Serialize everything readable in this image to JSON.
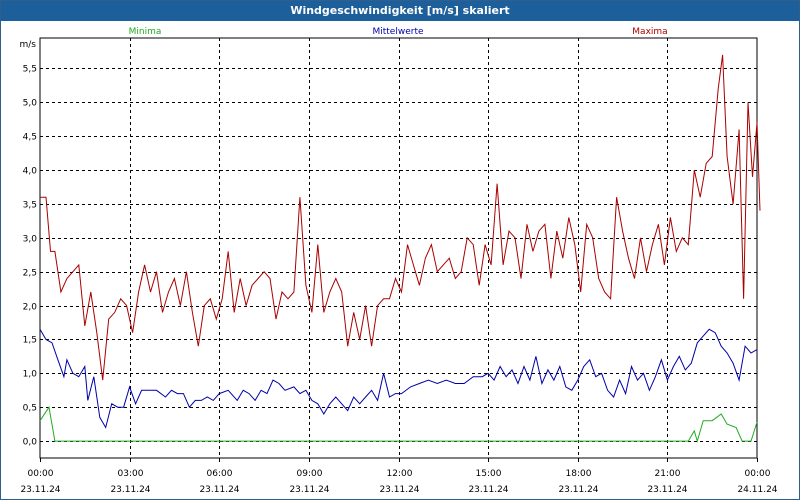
{
  "chart_data": {
    "type": "line",
    "title": "Windgeschwindigkeit [m/s] skaliert",
    "ylabel": "m/s",
    "ylim": [
      -0.25,
      5.95
    ],
    "yticks": [
      "0,0",
      "0,5",
      "1,0",
      "1,5",
      "2,0",
      "2,5",
      "3,0",
      "3,5",
      "4,0",
      "4,5",
      "5,0",
      "5,5"
    ],
    "ytick_values": [
      0,
      0.5,
      1,
      1.5,
      2,
      2.5,
      3,
      3.5,
      4,
      4.5,
      5,
      5.5
    ],
    "xlim": [
      0,
      24
    ],
    "xticks": [
      {
        "time": "00:00",
        "date": "23.11.24"
      },
      {
        "time": "03:00",
        "date": "23.11.24"
      },
      {
        "time": "06:00",
        "date": "23.11.24"
      },
      {
        "time": "09:00",
        "date": "23.11.24"
      },
      {
        "time": "12:00",
        "date": "23.11.24"
      },
      {
        "time": "15:00",
        "date": "23.11.24"
      },
      {
        "time": "18:00",
        "date": "23.11.24"
      },
      {
        "time": "21:00",
        "date": "23.11.24"
      },
      {
        "time": "00:00",
        "date": "24.11.24"
      }
    ],
    "xtick_values": [
      0,
      3,
      6,
      9,
      12,
      15,
      18,
      21,
      24
    ],
    "grid": true,
    "legend_position": "top",
    "series": [
      {
        "name": "Minima",
        "color": "#22aa22",
        "points": [
          [
            0,
            0.3
          ],
          [
            0.3,
            0.5
          ],
          [
            0.5,
            0.0
          ],
          [
            1,
            0
          ],
          [
            3,
            0
          ],
          [
            6,
            0
          ],
          [
            9,
            0
          ],
          [
            12,
            0
          ],
          [
            15,
            0
          ],
          [
            18,
            0
          ],
          [
            21,
            0
          ],
          [
            21.7,
            0
          ],
          [
            21.9,
            0.15
          ],
          [
            22,
            0.0
          ],
          [
            22.2,
            0.3
          ],
          [
            22.5,
            0.3
          ],
          [
            22.8,
            0.4
          ],
          [
            23,
            0.25
          ],
          [
            23.3,
            0.2
          ],
          [
            23.5,
            0.0
          ],
          [
            23.8,
            0.0
          ],
          [
            24,
            0.28
          ]
        ]
      },
      {
        "name": "Mittelwerte",
        "color": "#0000aa",
        "points": [
          [
            0,
            1.65
          ],
          [
            0.2,
            1.5
          ],
          [
            0.4,
            1.45
          ],
          [
            0.6,
            1.2
          ],
          [
            0.8,
            0.95
          ],
          [
            0.9,
            1.2
          ],
          [
            1.1,
            1.0
          ],
          [
            1.3,
            0.95
          ],
          [
            1.5,
            1.1
          ],
          [
            1.6,
            0.6
          ],
          [
            1.8,
            0.95
          ],
          [
            2,
            0.35
          ],
          [
            2.2,
            0.2
          ],
          [
            2.4,
            0.55
          ],
          [
            2.6,
            0.5
          ],
          [
            2.8,
            0.5
          ],
          [
            3,
            0.8
          ],
          [
            3.2,
            0.55
          ],
          [
            3.4,
            0.75
          ],
          [
            3.6,
            0.75
          ],
          [
            3.9,
            0.75
          ],
          [
            4.2,
            0.65
          ],
          [
            4.4,
            0.75
          ],
          [
            4.6,
            0.7
          ],
          [
            4.8,
            0.7
          ],
          [
            5,
            0.5
          ],
          [
            5.2,
            0.6
          ],
          [
            5.4,
            0.6
          ],
          [
            5.6,
            0.65
          ],
          [
            5.8,
            0.6
          ],
          [
            6,
            0.7
          ],
          [
            6.3,
            0.75
          ],
          [
            6.6,
            0.6
          ],
          [
            6.8,
            0.75
          ],
          [
            7,
            0.7
          ],
          [
            7.2,
            0.6
          ],
          [
            7.4,
            0.75
          ],
          [
            7.6,
            0.7
          ],
          [
            7.8,
            0.9
          ],
          [
            8,
            0.85
          ],
          [
            8.2,
            0.75
          ],
          [
            8.5,
            0.8
          ],
          [
            8.7,
            0.7
          ],
          [
            8.9,
            0.75
          ],
          [
            9.1,
            0.6
          ],
          [
            9.3,
            0.55
          ],
          [
            9.5,
            0.4
          ],
          [
            9.7,
            0.55
          ],
          [
            9.9,
            0.65
          ],
          [
            10.1,
            0.55
          ],
          [
            10.3,
            0.45
          ],
          [
            10.5,
            0.65
          ],
          [
            10.7,
            0.55
          ],
          [
            10.9,
            0.65
          ],
          [
            11.1,
            0.75
          ],
          [
            11.3,
            0.6
          ],
          [
            11.5,
            1.0
          ],
          [
            11.7,
            0.65
          ],
          [
            11.9,
            0.7
          ],
          [
            12.1,
            0.7
          ],
          [
            12.4,
            0.8
          ],
          [
            12.7,
            0.85
          ],
          [
            13,
            0.9
          ],
          [
            13.3,
            0.85
          ],
          [
            13.6,
            0.9
          ],
          [
            13.9,
            0.85
          ],
          [
            14.2,
            0.85
          ],
          [
            14.5,
            0.95
          ],
          [
            14.8,
            0.95
          ],
          [
            15,
            1.0
          ],
          [
            15.2,
            0.9
          ],
          [
            15.4,
            1.1
          ],
          [
            15.6,
            0.95
          ],
          [
            15.8,
            1.05
          ],
          [
            16,
            0.85
          ],
          [
            16.2,
            1.1
          ],
          [
            16.4,
            0.9
          ],
          [
            16.6,
            1.25
          ],
          [
            16.8,
            0.85
          ],
          [
            17,
            1.05
          ],
          [
            17.2,
            0.9
          ],
          [
            17.4,
            1.1
          ],
          [
            17.6,
            0.8
          ],
          [
            17.8,
            0.75
          ],
          [
            18,
            0.9
          ],
          [
            18.2,
            1.1
          ],
          [
            18.4,
            1.2
          ],
          [
            18.6,
            0.95
          ],
          [
            18.8,
            1.0
          ],
          [
            19,
            0.75
          ],
          [
            19.2,
            0.65
          ],
          [
            19.4,
            0.9
          ],
          [
            19.6,
            0.7
          ],
          [
            19.8,
            1.1
          ],
          [
            20,
            0.9
          ],
          [
            20.2,
            1.0
          ],
          [
            20.4,
            0.75
          ],
          [
            20.6,
            0.95
          ],
          [
            20.8,
            1.2
          ],
          [
            21,
            0.9
          ],
          [
            21.2,
            1.1
          ],
          [
            21.4,
            1.25
          ],
          [
            21.6,
            1.05
          ],
          [
            21.8,
            1.15
          ],
          [
            22,
            1.45
          ],
          [
            22.2,
            1.55
          ],
          [
            22.4,
            1.65
          ],
          [
            22.6,
            1.6
          ],
          [
            22.8,
            1.4
          ],
          [
            23,
            1.3
          ],
          [
            23.2,
            1.15
          ],
          [
            23.4,
            0.9
          ],
          [
            23.6,
            1.4
          ],
          [
            23.8,
            1.3
          ],
          [
            24,
            1.35
          ]
        ]
      },
      {
        "name": "Maxima",
        "color": "#aa0000",
        "points": [
          [
            0,
            3.6
          ],
          [
            0.2,
            3.6
          ],
          [
            0.35,
            2.8
          ],
          [
            0.5,
            2.8
          ],
          [
            0.7,
            2.2
          ],
          [
            0.9,
            2.4
          ],
          [
            1.1,
            2.5
          ],
          [
            1.3,
            2.6
          ],
          [
            1.5,
            1.7
          ],
          [
            1.7,
            2.2
          ],
          [
            1.9,
            1.6
          ],
          [
            2.1,
            0.9
          ],
          [
            2.3,
            1.8
          ],
          [
            2.5,
            1.9
          ],
          [
            2.7,
            2.1
          ],
          [
            2.9,
            2.0
          ],
          [
            3.1,
            1.6
          ],
          [
            3.3,
            2.2
          ],
          [
            3.5,
            2.6
          ],
          [
            3.7,
            2.2
          ],
          [
            3.9,
            2.5
          ],
          [
            4.1,
            1.9
          ],
          [
            4.3,
            2.2
          ],
          [
            4.5,
            2.4
          ],
          [
            4.7,
            2.0
          ],
          [
            4.9,
            2.5
          ],
          [
            5.1,
            1.9
          ],
          [
            5.3,
            1.4
          ],
          [
            5.5,
            2.0
          ],
          [
            5.7,
            2.1
          ],
          [
            5.9,
            1.8
          ],
          [
            6.1,
            2.1
          ],
          [
            6.3,
            2.8
          ],
          [
            6.5,
            1.9
          ],
          [
            6.7,
            2.4
          ],
          [
            6.9,
            2.0
          ],
          [
            7.1,
            2.3
          ],
          [
            7.3,
            2.4
          ],
          [
            7.5,
            2.5
          ],
          [
            7.7,
            2.4
          ],
          [
            7.9,
            1.8
          ],
          [
            8.1,
            2.2
          ],
          [
            8.3,
            2.1
          ],
          [
            8.5,
            2.2
          ],
          [
            8.7,
            3.6
          ],
          [
            8.9,
            2.3
          ],
          [
            9.1,
            1.9
          ],
          [
            9.3,
            2.9
          ],
          [
            9.5,
            1.9
          ],
          [
            9.7,
            2.2
          ],
          [
            9.9,
            2.4
          ],
          [
            10.1,
            2.2
          ],
          [
            10.3,
            1.4
          ],
          [
            10.5,
            1.9
          ],
          [
            10.7,
            1.5
          ],
          [
            10.9,
            2.0
          ],
          [
            11.1,
            1.4
          ],
          [
            11.3,
            2.0
          ],
          [
            11.5,
            2.1
          ],
          [
            11.7,
            2.1
          ],
          [
            11.9,
            2.4
          ],
          [
            12.1,
            2.2
          ],
          [
            12.3,
            2.9
          ],
          [
            12.5,
            2.6
          ],
          [
            12.7,
            2.3
          ],
          [
            12.9,
            2.7
          ],
          [
            13.1,
            2.9
          ],
          [
            13.3,
            2.5
          ],
          [
            13.5,
            2.6
          ],
          [
            13.7,
            2.7
          ],
          [
            13.9,
            2.4
          ],
          [
            14.1,
            2.5
          ],
          [
            14.3,
            3.0
          ],
          [
            14.5,
            2.9
          ],
          [
            14.7,
            2.3
          ],
          [
            14.9,
            2.9
          ],
          [
            15.1,
            2.6
          ],
          [
            15.3,
            3.8
          ],
          [
            15.5,
            2.6
          ],
          [
            15.7,
            3.1
          ],
          [
            15.9,
            3.0
          ],
          [
            16.1,
            2.4
          ],
          [
            16.3,
            3.2
          ],
          [
            16.5,
            2.8
          ],
          [
            16.7,
            3.1
          ],
          [
            16.9,
            3.2
          ],
          [
            17.1,
            2.4
          ],
          [
            17.3,
            3.1
          ],
          [
            17.5,
            2.7
          ],
          [
            17.7,
            3.3
          ],
          [
            17.9,
            2.9
          ],
          [
            18.1,
            2.2
          ],
          [
            18.3,
            3.2
          ],
          [
            18.5,
            3.0
          ],
          [
            18.7,
            2.4
          ],
          [
            18.9,
            2.2
          ],
          [
            19.1,
            2.1
          ],
          [
            19.3,
            3.6
          ],
          [
            19.5,
            3.1
          ],
          [
            19.7,
            2.7
          ],
          [
            19.9,
            2.4
          ],
          [
            20.1,
            3.0
          ],
          [
            20.3,
            2.5
          ],
          [
            20.5,
            2.9
          ],
          [
            20.7,
            3.2
          ],
          [
            20.9,
            2.6
          ],
          [
            21.1,
            3.3
          ],
          [
            21.3,
            2.8
          ],
          [
            21.5,
            3.0
          ],
          [
            21.7,
            2.9
          ],
          [
            21.9,
            4.0
          ],
          [
            22.1,
            3.6
          ],
          [
            22.3,
            4.1
          ],
          [
            22.5,
            4.2
          ],
          [
            22.7,
            5.2
          ],
          [
            22.85,
            5.7
          ],
          [
            23,
            4.2
          ],
          [
            23.2,
            3.5
          ],
          [
            23.4,
            4.6
          ],
          [
            23.55,
            2.1
          ],
          [
            23.7,
            5.0
          ],
          [
            23.85,
            3.9
          ],
          [
            24,
            4.7
          ],
          [
            24.1,
            3.4
          ]
        ]
      }
    ]
  }
}
